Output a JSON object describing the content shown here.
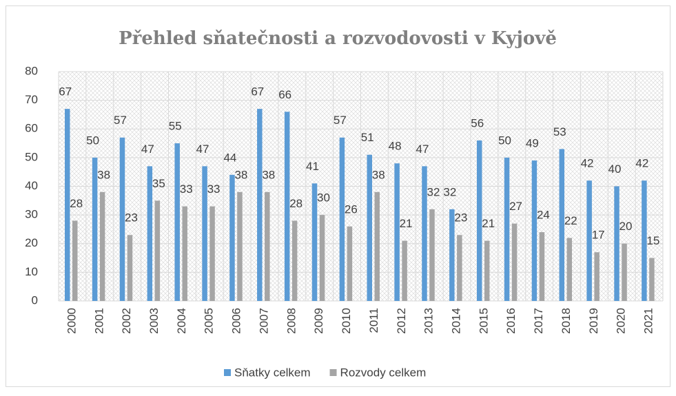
{
  "chart_data": {
    "type": "bar",
    "title": "Přehled sňatečnosti a rozvodovosti v Kyjově",
    "categories": [
      "2000",
      "2001",
      "2002",
      "2003",
      "2004",
      "2005",
      "2006",
      "2007",
      "2008",
      "2009",
      "2010",
      "2011",
      "2012",
      "2013",
      "2014",
      "2015",
      "2016",
      "2017",
      "2018",
      "2019",
      "2020",
      "2021"
    ],
    "series": [
      {
        "name": "Sňatky celkem",
        "color": "#5b9bd5",
        "values": [
          67,
          50,
          57,
          47,
          55,
          47,
          44,
          67,
          66,
          41,
          57,
          51,
          48,
          47,
          32,
          56,
          50,
          49,
          53,
          42,
          40,
          42
        ]
      },
      {
        "name": "Rozvody celkem",
        "color": "#a5a5a5",
        "values": [
          28,
          38,
          23,
          35,
          33,
          33,
          38,
          38,
          28,
          30,
          26,
          38,
          21,
          32,
          23,
          21,
          27,
          24,
          22,
          17,
          20,
          15
        ]
      }
    ],
    "ylim": [
      0,
      80
    ],
    "yticks": [
      0,
      10,
      20,
      30,
      40,
      50,
      60,
      70,
      80
    ],
    "grid": true,
    "legend": "bottom"
  }
}
